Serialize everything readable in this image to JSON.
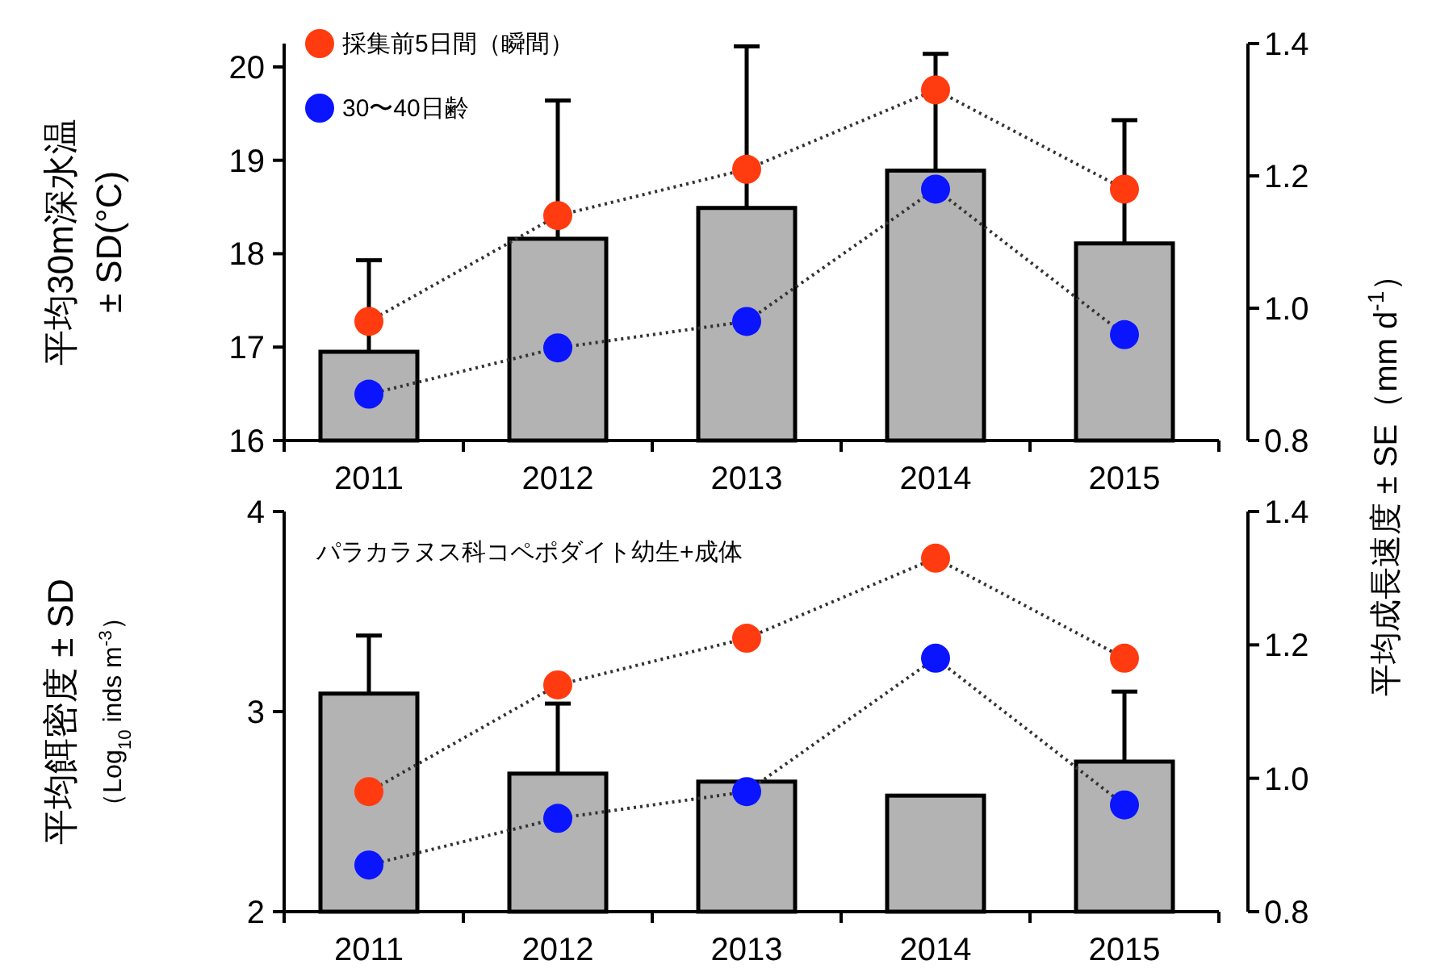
{
  "chart_data": [
    {
      "type": "bar",
      "categories": [
        "2011",
        "2012",
        "2013",
        "2014",
        "2015"
      ],
      "ylabel": "平均30m深水温\n± SD(°C)",
      "y2label": "平均成長速度 ± SE（mm d$^{-1}$）",
      "ylim": [
        16,
        20.25
      ],
      "yticks": [
        16,
        17,
        18,
        19,
        20
      ],
      "y2lim": [
        0.8,
        1.4
      ],
      "y2ticks": [
        {
          "value": 0.8,
          "label": "0.8"
        },
        {
          "value": 1.0,
          "label": "1.0"
        },
        {
          "value": 1.2,
          "label": "1.2"
        },
        {
          "value": 1.4,
          "label": "1.4"
        }
      ],
      "legend": "top left",
      "series": [
        {
          "color": "#b3b3b3",
          "values": [
            16.95,
            18.16,
            18.49,
            18.89,
            18.11
          ],
          "errors": [
            [
              16.95,
              17.93
            ],
            [
              18.16,
              19.64
            ],
            [
              18.49,
              20.22
            ],
            [
              18.89,
              20.14
            ],
            [
              18.11,
              19.43
            ]
          ]
        },
        {
          "type": "line",
          "name": "採集前5日間（瞬間）",
          "axis": "y2",
          "color": "#ff3b0f",
          "marker": "circle",
          "line_style": "dotted",
          "values": [
            0.98,
            1.14,
            1.21,
            1.33,
            1.18
          ]
        },
        {
          "type": "line",
          "name": "30〜40日齢",
          "axis": "y2",
          "color": "#0a14ff",
          "marker": "circle",
          "line_style": "dotted",
          "values": [
            0.87,
            0.94,
            0.98,
            1.18,
            0.96
          ]
        }
      ]
    },
    {
      "type": "bar",
      "categories": [
        "2011",
        "2012",
        "2013",
        "2014",
        "2015"
      ],
      "ylabel": "平均餌密度 ± SD\n（Log$_{10}$ inds m$^{-3}$）",
      "annotations": [
        "パラカラヌス科コペポダイト幼生+成体"
      ],
      "ylim": [
        2,
        4
      ],
      "yticks": [
        2,
        3,
        4
      ],
      "y2lim": [
        0.8,
        1.4
      ],
      "y2ticks": [
        {
          "value": 0.8,
          "label": "0.8"
        },
        {
          "value": 1.0,
          "label": "1.0"
        },
        {
          "value": 1.2,
          "label": "1.2"
        },
        {
          "value": 1.4,
          "label": "1.4"
        }
      ],
      "series": [
        {
          "color": "#b3b3b3",
          "values": [
            3.09,
            2.69,
            2.65,
            2.58,
            2.75
          ],
          "errors": [
            [
              3.09,
              3.38
            ],
            [
              2.69,
              3.04
            ],
            null,
            null,
            [
              2.75,
              3.1
            ]
          ]
        },
        {
          "type": "line",
          "axis": "y2",
          "color": "#ff3b0f",
          "marker": "circle",
          "line_style": "dotted",
          "values": [
            0.98,
            1.14,
            1.21,
            1.33,
            1.18
          ]
        },
        {
          "type": "line",
          "axis": "y2",
          "color": "#0a14ff",
          "marker": "circle",
          "line_style": "dotted",
          "values": [
            0.87,
            0.94,
            0.98,
            1.18,
            0.96
          ]
        }
      ]
    }
  ]
}
